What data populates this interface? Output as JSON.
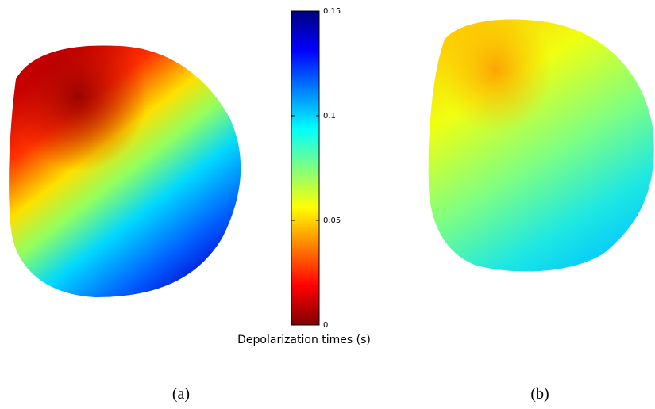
{
  "colorbar": {
    "label": "Depolarization times (s)",
    "lim": [
      0,
      0.15
    ],
    "ticks": [
      0,
      0.05,
      0.1,
      0.15
    ]
  },
  "panels": [
    {
      "caption": "(a)"
    },
    {
      "caption": "(b)"
    }
  ]
}
